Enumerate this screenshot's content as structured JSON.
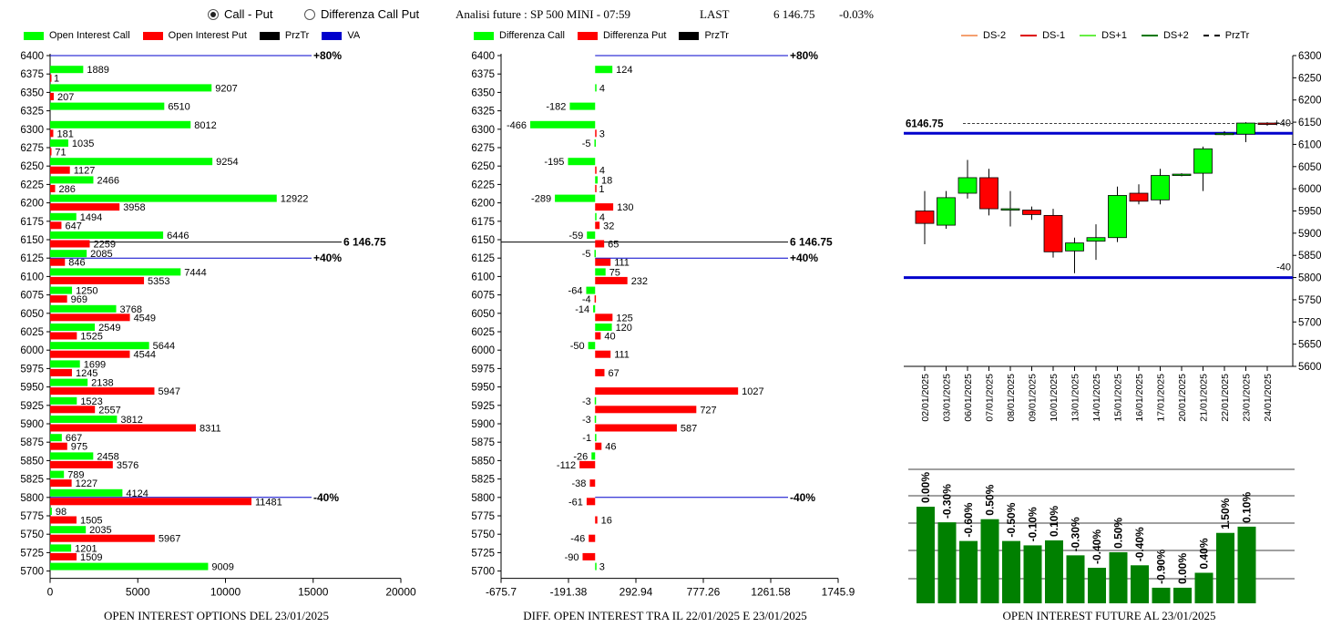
{
  "header": {
    "radio_call_put": "Call - Put",
    "radio_diff": "Differenza Call Put",
    "analysis_title": "Analisi future : SP 500 MINI - 07:59",
    "last_label": "LAST",
    "last_value": "6 146.75",
    "last_change": "-0.03%"
  },
  "colors": {
    "call": "#00ff00",
    "put": "#ff0000",
    "prztr": "#000000",
    "va": "#0000cc",
    "future_bar": "#008000"
  },
  "chart_data": [
    {
      "type": "bar",
      "title": "OPEN INTEREST OPTIONS DEL 23/01/2025",
      "legend": [
        "Open Interest Call",
        "Open Interest Put",
        "PrzTr",
        "VA"
      ],
      "categories": [
        6400,
        6375,
        6350,
        6325,
        6300,
        6275,
        6250,
        6225,
        6200,
        6175,
        6150,
        6125,
        6100,
        6075,
        6050,
        6025,
        6000,
        5975,
        5950,
        5925,
        5900,
        5875,
        5850,
        5825,
        5800,
        5775,
        5750,
        5725,
        5700
      ],
      "series": [
        {
          "name": "Open Interest Call",
          "values": [
            null,
            1889,
            9207,
            6510,
            8012,
            1035,
            9254,
            2466,
            12922,
            1494,
            6446,
            2085,
            7444,
            1250,
            3768,
            2549,
            5644,
            1699,
            2138,
            1523,
            3812,
            667,
            2458,
            789,
            4124,
            98,
            2035,
            1201,
            9009
          ]
        },
        {
          "name": "Open Interest Put",
          "values": [
            null,
            1,
            207,
            null,
            181,
            71,
            1127,
            286,
            3958,
            647,
            2259,
            846,
            5353,
            969,
            4549,
            1525,
            4544,
            1245,
            5947,
            2557,
            8311,
            975,
            3576,
            1227,
            11481,
            1505,
            5967,
            1509,
            null
          ]
        }
      ],
      "xlim": [
        0,
        20000
      ],
      "xticks": [
        "0",
        "5000",
        "10000",
        "15000",
        "20000"
      ],
      "prztr": {
        "value": 6146.75,
        "label": "6 146.75"
      },
      "va_levels": [
        {
          "strike": 6400,
          "label": "+80%"
        },
        {
          "strike": 6125,
          "label": "+40%"
        },
        {
          "strike": 5800,
          "label": "-40%"
        }
      ]
    },
    {
      "type": "bar",
      "title": "DIFF. OPEN INTEREST TRA IL 22/01/2025 E 23/01/2025",
      "legend": [
        "Differenza Call",
        "Differenza Put",
        "PrzTr"
      ],
      "categories": [
        6400,
        6375,
        6350,
        6325,
        6300,
        6275,
        6250,
        6225,
        6200,
        6175,
        6150,
        6125,
        6100,
        6075,
        6050,
        6025,
        6000,
        5975,
        5950,
        5925,
        5900,
        5875,
        5850,
        5825,
        5800,
        5775,
        5750,
        5725,
        5700
      ],
      "series": [
        {
          "name": "Differenza Call",
          "values": [
            null,
            124,
            4,
            -182,
            -466,
            -5,
            -195,
            18,
            -289,
            4,
            -59,
            -5,
            75,
            -64,
            -14,
            120,
            -50,
            null,
            null,
            -3,
            -3,
            -1,
            -26,
            null,
            null,
            null,
            null,
            null,
            3
          ]
        },
        {
          "name": "Differenza Put",
          "values": [
            null,
            null,
            null,
            null,
            3,
            null,
            4,
            1,
            130,
            32,
            65,
            111,
            232,
            -4,
            125,
            40,
            111,
            67,
            1027,
            727,
            587,
            46,
            -112,
            -38,
            -61,
            16,
            -46,
            -90,
            null
          ]
        }
      ],
      "xlim": [
        -675.7,
        1745.9
      ],
      "xticks": [
        "-675.7",
        "-191.38",
        "292.94",
        "777.26",
        "1261.58",
        "1745.9"
      ],
      "prztr": {
        "value": 6146.75,
        "label": "6 146.75"
      },
      "va_levels": [
        {
          "strike": 6400,
          "label": "+80%"
        },
        {
          "strike": 6125,
          "label": "+40%"
        },
        {
          "strike": 5800,
          "label": "-40%"
        }
      ]
    },
    {
      "type": "candlestick",
      "legend": [
        "DS-2",
        "DS-1",
        "DS+1",
        "DS+2",
        "PrzTr"
      ],
      "x": [
        "02/01/2025",
        "03/01/2025",
        "06/01/2025",
        "07/01/2025",
        "08/01/2025",
        "09/01/2025",
        "10/01/2025",
        "13/01/2025",
        "14/01/2025",
        "15/01/2025",
        "16/01/2025",
        "17/01/2025",
        "20/01/2025",
        "21/01/2025",
        "22/01/2025",
        "23/01/2025",
        "24/01/2025"
      ],
      "ohlc": [
        [
          5950,
          5995,
          5875,
          5922
        ],
        [
          5918,
          5995,
          5910,
          5980
        ],
        [
          5990,
          6065,
          5978,
          6025
        ],
        [
          6025,
          6045,
          5940,
          5955
        ],
        [
          5955,
          5995,
          5915,
          5955
        ],
        [
          5952,
          5960,
          5930,
          5942
        ],
        [
          5940,
          5955,
          5845,
          5858
        ],
        [
          5860,
          5890,
          5810,
          5878
        ],
        [
          5882,
          5920,
          5840,
          5890
        ],
        [
          5890,
          6005,
          5880,
          5985
        ],
        [
          5990,
          6010,
          5965,
          5972
        ],
        [
          5975,
          6045,
          5965,
          6030
        ],
        [
          6030,
          6035,
          6028,
          6033
        ],
        [
          6035,
          6095,
          5995,
          6090
        ],
        [
          6125,
          6130,
          6120,
          6125
        ],
        [
          6123,
          6150,
          6105,
          6148
        ],
        [
          6148,
          6150,
          6142,
          6147
        ]
      ],
      "ylim": [
        5600,
        6300
      ],
      "yticks": [
        5600,
        5650,
        5700,
        5750,
        5800,
        5850,
        5900,
        5950,
        6000,
        6050,
        6100,
        6150,
        6200,
        6250,
        6300
      ],
      "prztr": {
        "value": 6146.75,
        "label": "6146.75"
      },
      "ds_lines": [
        {
          "value": 6125,
          "label": "+40"
        },
        {
          "value": 5800,
          "label": "-40"
        }
      ]
    },
    {
      "type": "bar",
      "title": "OPEN INTEREST FUTURE AL 23/01/2025",
      "labels": [
        "0.00%",
        "-0.30%",
        "-0.60%",
        "0.50%",
        "-0.50%",
        "-0.10%",
        "0.10%",
        "-0.30%",
        "-0.40%",
        "0.50%",
        "-0.40%",
        "-0.90%",
        "0.00%",
        "0.40%",
        "1.50%",
        "0.10%"
      ],
      "values": [
        100,
        97.5,
        94.5,
        98,
        94.5,
        93.8,
        94.6,
        92.2,
        90.2,
        92.7,
        90.6,
        87,
        87,
        89.4,
        95.8,
        96.8
      ],
      "ylim": [
        84.5,
        106
      ]
    }
  ],
  "captions": {
    "left": "OPEN INTEREST OPTIONS DEL 23/01/2025",
    "middle": "DIFF. OPEN INTEREST TRA IL 22/01/2025 E 23/01/2025",
    "right": "OPEN INTEREST FUTURE AL 23/01/2025"
  }
}
